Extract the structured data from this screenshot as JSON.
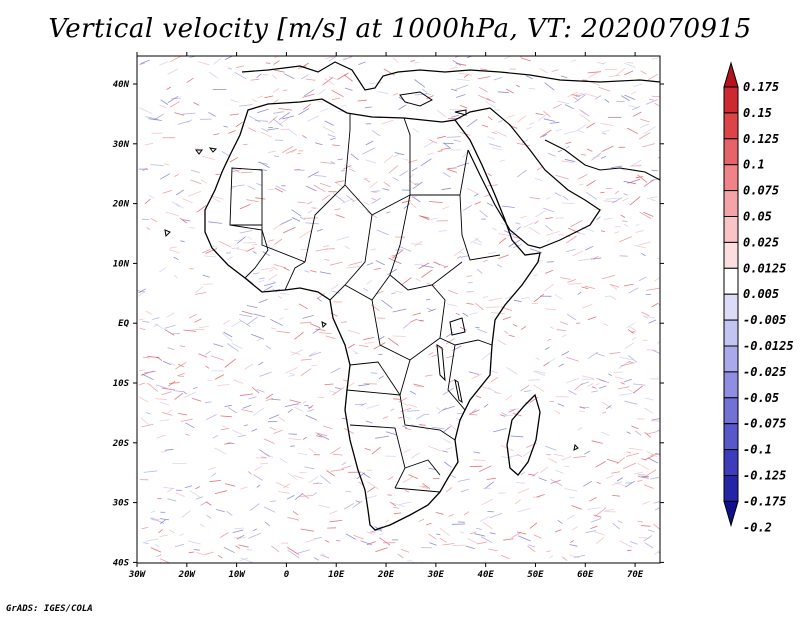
{
  "title": "Vertical velocity [m/s] at 1000hPa, VT: 2020070915",
  "credit": "GrADS: IGES/COLA",
  "map": {
    "lon_labels": [
      "30W",
      "20W",
      "10W",
      "0",
      "10E",
      "20E",
      "30E",
      "40E",
      "50E",
      "60E",
      "70E"
    ],
    "lat_labels": [
      "40N",
      "30N",
      "20N",
      "10N",
      "EQ",
      "10S",
      "20S",
      "30S",
      "40S"
    ]
  },
  "colorbar": {
    "labels": [
      "0.175",
      "0.15",
      "0.125",
      "0.1",
      "0.075",
      "0.05",
      "0.025",
      "0.0125",
      "0.005",
      "-0.005",
      "-0.0125",
      "-0.025",
      "-0.05",
      "-0.075",
      "-0.1",
      "-0.125",
      "-0.175",
      "-0.2"
    ],
    "colors": [
      "#b4141e",
      "#cc2a30",
      "#dc4448",
      "#e8626a",
      "#ef8388",
      "#f4a4a8",
      "#f8c4c6",
      "#fbdfe0",
      "#ffffff",
      "#dcdcf8",
      "#c4c4f2",
      "#aaaaea",
      "#8e8ee2",
      "#7272d6",
      "#5858ca",
      "#3c3cbc",
      "#2424a8",
      "#10108c"
    ]
  }
}
